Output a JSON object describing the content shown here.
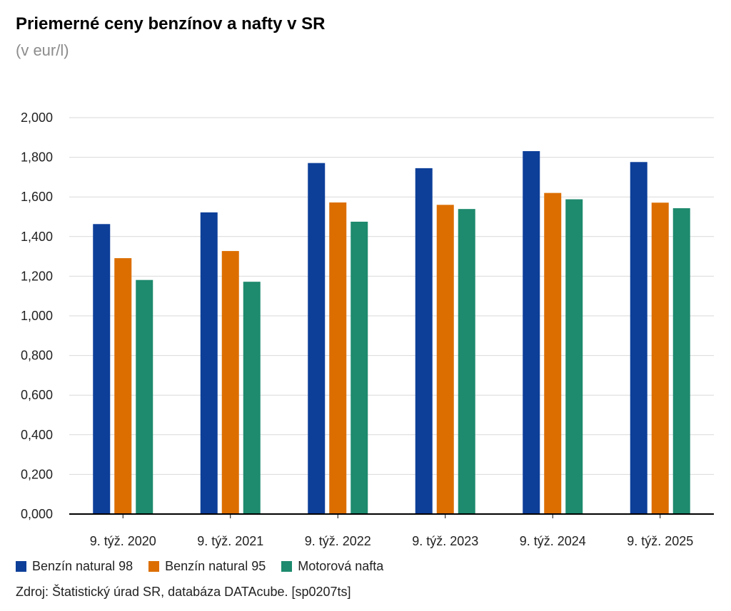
{
  "chart_data": {
    "type": "bar",
    "title": "Priemerné ceny benzínov a nafty v SR",
    "subtitle": "(v eur/l)",
    "categories": [
      "9. týž. 2020",
      "9. týž. 2021",
      "9. týž. 2022",
      "9. týž. 2023",
      "9. týž. 2024",
      "9. týž. 2025"
    ],
    "series": [
      {
        "name": "Benzín natural 98",
        "color": "#0d3f99",
        "values": [
          1.463,
          1.522,
          1.771,
          1.745,
          1.831,
          1.776
        ]
      },
      {
        "name": "Benzín natural 95",
        "color": "#dc6e00",
        "values": [
          1.291,
          1.327,
          1.572,
          1.56,
          1.62,
          1.571
        ]
      },
      {
        "name": "Motorová nafta",
        "color": "#1e8a6e",
        "values": [
          1.181,
          1.172,
          1.475,
          1.539,
          1.588,
          1.543
        ]
      }
    ],
    "yticks": [
      "0,000",
      "0,200",
      "0,400",
      "0,600",
      "0,800",
      "1,000",
      "1,200",
      "1,400",
      "1,600",
      "1,800",
      "2,000"
    ],
    "ylim": [
      0,
      2.0
    ],
    "xlabel": "",
    "ylabel": "",
    "grid": true,
    "legend_position": "bottom-left"
  },
  "source": "Zdroj: Štatistický úrad SR, databáza DATAcube. [sp0207ts]"
}
